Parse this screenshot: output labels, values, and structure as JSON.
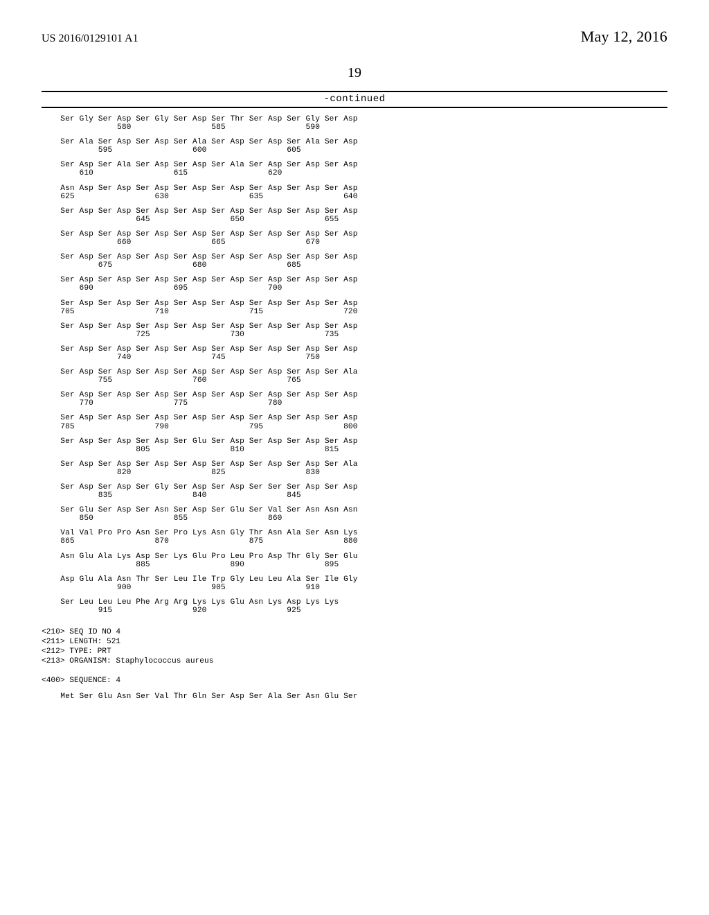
{
  "header": {
    "pub_number": "US 2016/0129101 A1",
    "date": "May 12, 2016",
    "page_no": "19",
    "continued_label": "-continued"
  },
  "indent": "    ",
  "rows": [
    {
      "start": 577,
      "aa": [
        "Ser",
        "Gly",
        "Ser",
        "Asp",
        "Ser",
        "Gly",
        "Ser",
        "Asp",
        "Ser",
        "Thr",
        "Ser",
        "Asp",
        "Ser",
        "Gly",
        "Ser",
        "Asp"
      ],
      "nums": [
        580,
        585,
        590
      ]
    },
    {
      "start": 593,
      "aa": [
        "Ser",
        "Ala",
        "Ser",
        "Asp",
        "Ser",
        "Asp",
        "Ser",
        "Ala",
        "Ser",
        "Asp",
        "Ser",
        "Asp",
        "Ser",
        "Ala",
        "Ser",
        "Asp"
      ],
      "nums": [
        595,
        600,
        605
      ]
    },
    {
      "start": 609,
      "aa": [
        "Ser",
        "Asp",
        "Ser",
        "Ala",
        "Ser",
        "Asp",
        "Ser",
        "Asp",
        "Ser",
        "Ala",
        "Ser",
        "Asp",
        "Ser",
        "Asp",
        "Ser",
        "Asp"
      ],
      "nums": [
        610,
        615,
        620
      ]
    },
    {
      "start": 625,
      "aa": [
        "Asn",
        "Asp",
        "Ser",
        "Asp",
        "Ser",
        "Asp",
        "Ser",
        "Asp",
        "Ser",
        "Asp",
        "Ser",
        "Asp",
        "Ser",
        "Asp",
        "Ser",
        "Asp"
      ],
      "nums": [
        625,
        630,
        635,
        640
      ]
    },
    {
      "start": 641,
      "aa": [
        "Ser",
        "Asp",
        "Ser",
        "Asp",
        "Ser",
        "Asp",
        "Ser",
        "Asp",
        "Ser",
        "Asp",
        "Ser",
        "Asp",
        "Ser",
        "Asp",
        "Ser",
        "Asp"
      ],
      "nums": [
        645,
        650,
        655
      ]
    },
    {
      "start": 657,
      "aa": [
        "Ser",
        "Asp",
        "Ser",
        "Asp",
        "Ser",
        "Asp",
        "Ser",
        "Asp",
        "Ser",
        "Asp",
        "Ser",
        "Asp",
        "Ser",
        "Asp",
        "Ser",
        "Asp"
      ],
      "nums": [
        660,
        665,
        670
      ]
    },
    {
      "start": 673,
      "aa": [
        "Ser",
        "Asp",
        "Ser",
        "Asp",
        "Ser",
        "Asp",
        "Ser",
        "Asp",
        "Ser",
        "Asp",
        "Ser",
        "Asp",
        "Ser",
        "Asp",
        "Ser",
        "Asp"
      ],
      "nums": [
        675,
        680,
        685
      ]
    },
    {
      "start": 689,
      "aa": [
        "Ser",
        "Asp",
        "Ser",
        "Asp",
        "Ser",
        "Asp",
        "Ser",
        "Asp",
        "Ser",
        "Asp",
        "Ser",
        "Asp",
        "Ser",
        "Asp",
        "Ser",
        "Asp"
      ],
      "nums": [
        690,
        695,
        700
      ]
    },
    {
      "start": 705,
      "aa": [
        "Ser",
        "Asp",
        "Ser",
        "Asp",
        "Ser",
        "Asp",
        "Ser",
        "Asp",
        "Ser",
        "Asp",
        "Ser",
        "Asp",
        "Ser",
        "Asp",
        "Ser",
        "Asp"
      ],
      "nums": [
        705,
        710,
        715,
        720
      ]
    },
    {
      "start": 721,
      "aa": [
        "Ser",
        "Asp",
        "Ser",
        "Asp",
        "Ser",
        "Asp",
        "Ser",
        "Asp",
        "Ser",
        "Asp",
        "Ser",
        "Asp",
        "Ser",
        "Asp",
        "Ser",
        "Asp"
      ],
      "nums": [
        725,
        730,
        735
      ]
    },
    {
      "start": 737,
      "aa": [
        "Ser",
        "Asp",
        "Ser",
        "Asp",
        "Ser",
        "Asp",
        "Ser",
        "Asp",
        "Ser",
        "Asp",
        "Ser",
        "Asp",
        "Ser",
        "Asp",
        "Ser",
        "Asp"
      ],
      "nums": [
        740,
        745,
        750
      ]
    },
    {
      "start": 753,
      "aa": [
        "Ser",
        "Asp",
        "Ser",
        "Asp",
        "Ser",
        "Asp",
        "Ser",
        "Asp",
        "Ser",
        "Asp",
        "Ser",
        "Asp",
        "Ser",
        "Asp",
        "Ser",
        "Ala"
      ],
      "nums": [
        755,
        760,
        765
      ]
    },
    {
      "start": 769,
      "aa": [
        "Ser",
        "Asp",
        "Ser",
        "Asp",
        "Ser",
        "Asp",
        "Ser",
        "Asp",
        "Ser",
        "Asp",
        "Ser",
        "Asp",
        "Ser",
        "Asp",
        "Ser",
        "Asp"
      ],
      "nums": [
        770,
        775,
        780
      ]
    },
    {
      "start": 785,
      "aa": [
        "Ser",
        "Asp",
        "Ser",
        "Asp",
        "Ser",
        "Asp",
        "Ser",
        "Asp",
        "Ser",
        "Asp",
        "Ser",
        "Asp",
        "Ser",
        "Asp",
        "Ser",
        "Asp"
      ],
      "nums": [
        785,
        790,
        795,
        800
      ]
    },
    {
      "start": 801,
      "aa": [
        "Ser",
        "Asp",
        "Ser",
        "Asp",
        "Ser",
        "Asp",
        "Ser",
        "Glu",
        "Ser",
        "Asp",
        "Ser",
        "Asp",
        "Ser",
        "Asp",
        "Ser",
        "Asp"
      ],
      "nums": [
        805,
        810,
        815
      ]
    },
    {
      "start": 817,
      "aa": [
        "Ser",
        "Asp",
        "Ser",
        "Asp",
        "Ser",
        "Asp",
        "Ser",
        "Asp",
        "Ser",
        "Asp",
        "Ser",
        "Asp",
        "Ser",
        "Asp",
        "Ser",
        "Ala"
      ],
      "nums": [
        820,
        825,
        830
      ]
    },
    {
      "start": 833,
      "aa": [
        "Ser",
        "Asp",
        "Ser",
        "Asp",
        "Ser",
        "Gly",
        "Ser",
        "Asp",
        "Ser",
        "Asp",
        "Ser",
        "Ser",
        "Ser",
        "Asp",
        "Ser",
        "Asp"
      ],
      "nums": [
        835,
        840,
        845
      ]
    },
    {
      "start": 849,
      "aa": [
        "Ser",
        "Glu",
        "Ser",
        "Asp",
        "Ser",
        "Asn",
        "Ser",
        "Asp",
        "Ser",
        "Glu",
        "Ser",
        "Val",
        "Ser",
        "Asn",
        "Asn",
        "Asn"
      ],
      "nums": [
        850,
        855,
        860
      ]
    },
    {
      "start": 865,
      "aa": [
        "Val",
        "Val",
        "Pro",
        "Pro",
        "Asn",
        "Ser",
        "Pro",
        "Lys",
        "Asn",
        "Gly",
        "Thr",
        "Asn",
        "Ala",
        "Ser",
        "Asn",
        "Lys"
      ],
      "nums": [
        865,
        870,
        875,
        880
      ]
    },
    {
      "start": 881,
      "aa": [
        "Asn",
        "Glu",
        "Ala",
        "Lys",
        "Asp",
        "Ser",
        "Lys",
        "Glu",
        "Pro",
        "Leu",
        "Pro",
        "Asp",
        "Thr",
        "Gly",
        "Ser",
        "Glu"
      ],
      "nums": [
        885,
        890,
        895
      ]
    },
    {
      "start": 897,
      "aa": [
        "Asp",
        "Glu",
        "Ala",
        "Asn",
        "Thr",
        "Ser",
        "Leu",
        "Ile",
        "Trp",
        "Gly",
        "Leu",
        "Leu",
        "Ala",
        "Ser",
        "Ile",
        "Gly"
      ],
      "nums": [
        900,
        905,
        910
      ]
    },
    {
      "start": 913,
      "aa": [
        "Ser",
        "Leu",
        "Leu",
        "Leu",
        "Phe",
        "Arg",
        "Arg",
        "Lys",
        "Lys",
        "Glu",
        "Asn",
        "Lys",
        "Asp",
        "Lys",
        "Lys"
      ],
      "nums": [
        915,
        920,
        925
      ]
    }
  ],
  "meta": [
    "<210> SEQ ID NO 4",
    "<211> LENGTH: 521",
    "<212> TYPE: PRT",
    "<213> ORGANISM: Staphylococcus aureus",
    "",
    "<400> SEQUENCE: 4"
  ],
  "tail_row": {
    "start": 1,
    "aa": [
      "Met",
      "Ser",
      "Glu",
      "Asn",
      "Ser",
      "Val",
      "Thr",
      "Gln",
      "Ser",
      "Asp",
      "Ser",
      "Ala",
      "Ser",
      "Asn",
      "Glu",
      "Ser"
    ],
    "nums": []
  }
}
